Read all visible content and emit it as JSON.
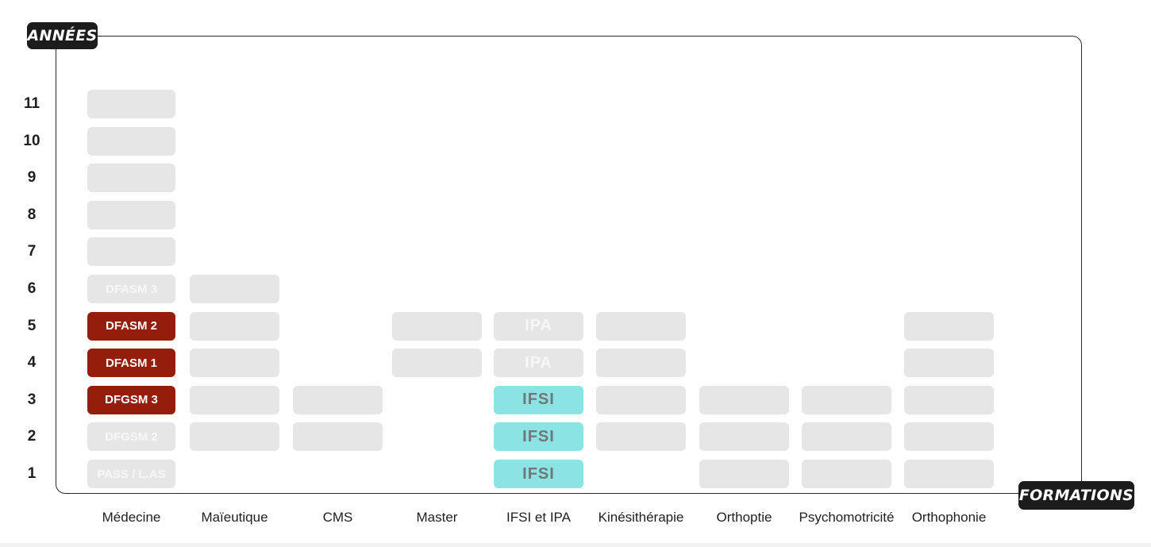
{
  "axis": {
    "y_title": "ANNÉES",
    "x_title": "FORMATIONS",
    "years": [
      "1",
      "2",
      "3",
      "4",
      "5",
      "6",
      "7",
      "8",
      "9",
      "10",
      "11"
    ]
  },
  "colors": {
    "highlight": "#951d0c",
    "nursing": "#8be3e4",
    "inactive": "#e6e6e6"
  },
  "formations": [
    {
      "label": "Médecine",
      "cells": [
        {
          "year": 1,
          "text": "PASS / L.AS",
          "style": "grey"
        },
        {
          "year": 2,
          "text": "DFGSM 2",
          "style": "grey"
        },
        {
          "year": 3,
          "text": "DFGSM 3",
          "style": "red"
        },
        {
          "year": 4,
          "text": "DFASM 1",
          "style": "red"
        },
        {
          "year": 5,
          "text": "DFASM 2",
          "style": "red"
        },
        {
          "year": 6,
          "text": "DFASM 3",
          "style": "grey"
        },
        {
          "year": 7,
          "text": "",
          "style": "grey"
        },
        {
          "year": 8,
          "text": "",
          "style": "grey"
        },
        {
          "year": 9,
          "text": "",
          "style": "grey"
        },
        {
          "year": 10,
          "text": "",
          "style": "grey"
        },
        {
          "year": 11,
          "text": "",
          "style": "grey"
        }
      ]
    },
    {
      "label": "Maïeutique",
      "cells": [
        {
          "year": 2,
          "text": "",
          "style": "grey"
        },
        {
          "year": 3,
          "text": "",
          "style": "grey"
        },
        {
          "year": 4,
          "text": "",
          "style": "grey"
        },
        {
          "year": 5,
          "text": "",
          "style": "grey"
        },
        {
          "year": 6,
          "text": "",
          "style": "grey"
        }
      ]
    },
    {
      "label": "CMS",
      "cells": [
        {
          "year": 2,
          "text": "",
          "style": "grey"
        },
        {
          "year": 3,
          "text": "",
          "style": "grey"
        }
      ]
    },
    {
      "label": "Master",
      "cells": [
        {
          "year": 4,
          "text": "",
          "style": "grey"
        },
        {
          "year": 5,
          "text": "",
          "style": "grey"
        }
      ]
    },
    {
      "label": "IFSI et IPA",
      "cells": [
        {
          "year": 1,
          "text": "IFSI",
          "style": "cyan"
        },
        {
          "year": 2,
          "text": "IFSI",
          "style": "cyan"
        },
        {
          "year": 3,
          "text": "IFSI",
          "style": "cyan"
        },
        {
          "year": 4,
          "text": "IPA",
          "style": "grey ipa"
        },
        {
          "year": 5,
          "text": "IPA",
          "style": "grey ipa"
        }
      ]
    },
    {
      "label": "Kinésithérapie",
      "cells": [
        {
          "year": 2,
          "text": "",
          "style": "grey"
        },
        {
          "year": 3,
          "text": "",
          "style": "grey"
        },
        {
          "year": 4,
          "text": "",
          "style": "grey"
        },
        {
          "year": 5,
          "text": "",
          "style": "grey"
        }
      ]
    },
    {
      "label": "Orthoptie",
      "cells": [
        {
          "year": 1,
          "text": "",
          "style": "grey"
        },
        {
          "year": 2,
          "text": "",
          "style": "grey"
        },
        {
          "year": 3,
          "text": "",
          "style": "grey"
        }
      ]
    },
    {
      "label": "Psychomotricité",
      "cells": [
        {
          "year": 1,
          "text": "",
          "style": "grey"
        },
        {
          "year": 2,
          "text": "",
          "style": "grey"
        },
        {
          "year": 3,
          "text": "",
          "style": "grey"
        }
      ]
    },
    {
      "label": "Orthophonie",
      "cells": [
        {
          "year": 1,
          "text": "",
          "style": "grey"
        },
        {
          "year": 2,
          "text": "",
          "style": "grey"
        },
        {
          "year": 3,
          "text": "",
          "style": "grey"
        },
        {
          "year": 4,
          "text": "",
          "style": "grey"
        },
        {
          "year": 5,
          "text": "",
          "style": "grey"
        }
      ]
    }
  ]
}
